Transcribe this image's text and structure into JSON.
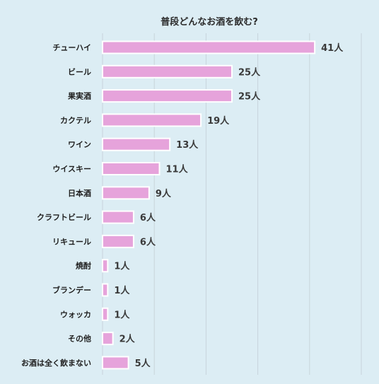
{
  "chart_data": {
    "type": "bar",
    "orientation": "horizontal",
    "title": "普段どんなお酒を飲む?",
    "categories": [
      "チューハイ",
      "ビール",
      "果実酒",
      "カクテル",
      "ワイン",
      "ウイスキー",
      "日本酒",
      "クラフトビール",
      "リキュール",
      "焼酎",
      "ブランデー",
      "ウォッカ",
      "その他",
      "お酒は全く飲まない"
    ],
    "values": [
      41,
      25,
      25,
      19,
      13,
      11,
      9,
      6,
      6,
      1,
      1,
      1,
      2,
      5
    ],
    "value_labels": [
      "41人",
      "25人",
      "25人",
      "19人",
      "13人",
      "11人",
      "9人",
      "6人",
      "6人",
      "1人",
      "1人",
      "1人",
      "2人",
      "5人"
    ],
    "xlim": [
      0,
      50
    ],
    "grid": true,
    "legend": "none",
    "colors": {
      "background": "#dcedf4",
      "bar_fill": "#e6a3db",
      "bar_stroke": "#ffffff",
      "grid": "#c7d4db"
    }
  }
}
